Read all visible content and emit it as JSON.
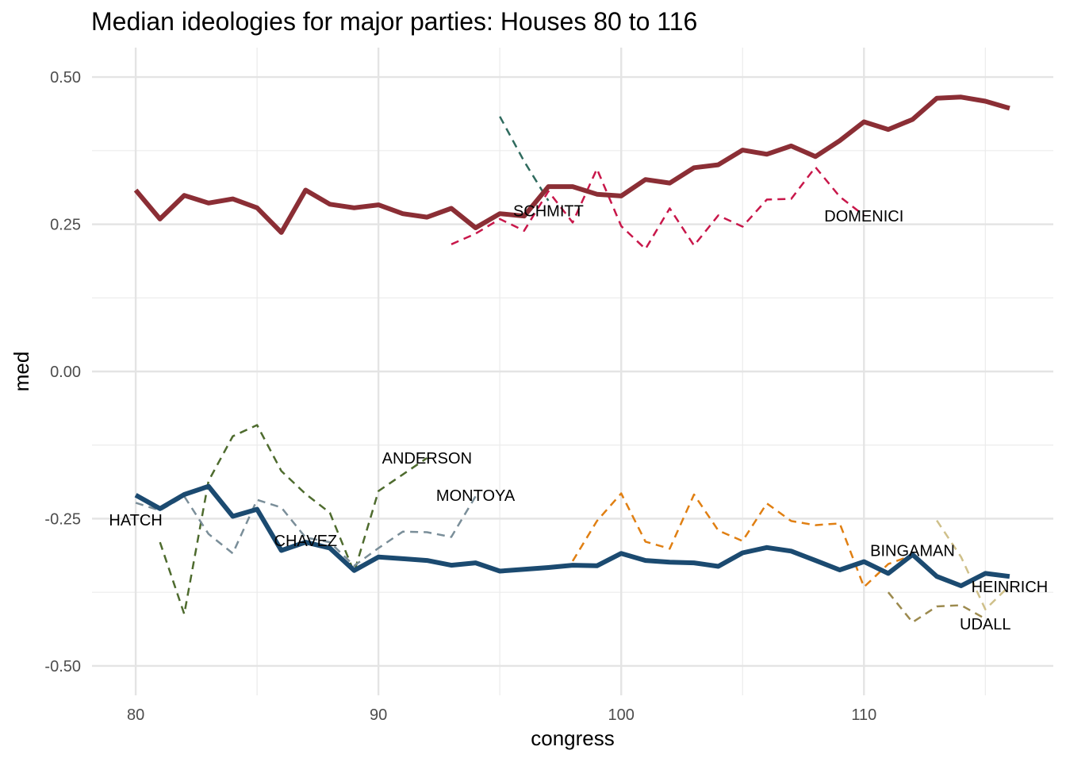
{
  "chart_data": {
    "type": "line",
    "title": "Median ideologies for major parties: Houses 80 to 116",
    "xlabel": "congress",
    "ylabel": "med",
    "xlim": [
      78.2,
      117.8
    ],
    "ylim": [
      -0.55,
      0.55
    ],
    "x_ticks": [
      80,
      90,
      100,
      110
    ],
    "y_ticks": [
      0.5,
      0.25,
      0.0,
      -0.25,
      -0.5
    ],
    "y_tick_labels": [
      "0.50",
      "0.25",
      "0.00",
      "-0.25",
      "-0.50"
    ],
    "grid": true,
    "legend": "none",
    "series": [
      {
        "color": "#8b2e35",
        "style": "solid",
        "width": 6,
        "x": [
          80,
          81,
          82,
          83,
          84,
          85,
          86,
          87,
          88,
          89,
          90,
          91,
          92,
          93,
          94,
          95,
          96,
          97,
          98,
          99,
          100,
          101,
          102,
          103,
          104,
          105,
          106,
          107,
          108,
          109,
          110,
          111,
          112,
          113,
          114,
          115,
          116
        ],
        "y": [
          0.308,
          0.259,
          0.299,
          0.286,
          0.293,
          0.278,
          0.236,
          0.308,
          0.284,
          0.278,
          0.283,
          0.268,
          0.262,
          0.277,
          0.244,
          0.268,
          0.264,
          0.314,
          0.314,
          0.301,
          0.298,
          0.326,
          0.32,
          0.346,
          0.351,
          0.376,
          0.369,
          0.383,
          0.365,
          0.392,
          0.424,
          0.411,
          0.428,
          0.464,
          0.466,
          0.459,
          0.447
        ]
      },
      {
        "color": "#1b4a70",
        "style": "solid",
        "width": 6,
        "x": [
          80,
          81,
          82,
          83,
          84,
          85,
          86,
          87,
          88,
          89,
          90,
          91,
          92,
          93,
          94,
          95,
          96,
          97,
          98,
          99,
          100,
          101,
          102,
          103,
          104,
          105,
          106,
          107,
          108,
          109,
          110,
          111,
          112,
          113,
          114,
          115,
          116
        ],
        "y": [
          -0.21,
          -0.233,
          -0.209,
          -0.195,
          -0.246,
          -0.234,
          -0.304,
          -0.29,
          -0.3,
          -0.338,
          -0.315,
          -0.318,
          -0.321,
          -0.329,
          -0.325,
          -0.339,
          -0.336,
          -0.333,
          -0.329,
          -0.33,
          -0.309,
          -0.321,
          -0.324,
          -0.325,
          -0.331,
          -0.308,
          -0.299,
          -0.305,
          -0.321,
          -0.337,
          -0.323,
          -0.343,
          -0.311,
          -0.348,
          -0.364,
          -0.343,
          -0.348
        ]
      },
      {
        "color": "#4e6b2e",
        "style": "dashed",
        "width": 2.5,
        "x": [
          81,
          82,
          83,
          84,
          85,
          86,
          87,
          88,
          89,
          90,
          91,
          92
        ],
        "y": [
          -0.29,
          -0.412,
          -0.186,
          -0.11,
          -0.091,
          -0.169,
          -0.208,
          -0.24,
          -0.341,
          -0.203,
          -0.175,
          -0.147
        ]
      },
      {
        "color": "#7a8e99",
        "style": "dashed",
        "width": 2.5,
        "x": [
          80,
          81,
          82,
          83,
          84,
          85,
          86,
          87,
          88,
          89,
          90,
          91,
          92,
          93,
          94
        ],
        "y": [
          -0.223,
          -0.236,
          -0.212,
          -0.276,
          -0.309,
          -0.218,
          -0.231,
          -0.282,
          -0.29,
          -0.33,
          -0.3,
          -0.272,
          -0.273,
          -0.281,
          -0.212
        ]
      },
      {
        "color": "#2f6b5e",
        "style": "dashed",
        "width": 2.5,
        "x": [
          95,
          96,
          97
        ],
        "y": [
          0.433,
          0.357,
          0.29
        ]
      },
      {
        "color": "#c8174a",
        "style": "dashed",
        "width": 2.5,
        "x": [
          93,
          94,
          95,
          96,
          97,
          98,
          99,
          100,
          101,
          102,
          103,
          104,
          105,
          106,
          107,
          108,
          109,
          110
        ],
        "y": [
          0.216,
          0.234,
          0.259,
          0.239,
          0.306,
          0.253,
          0.344,
          0.247,
          0.208,
          0.277,
          0.214,
          0.265,
          0.246,
          0.292,
          0.293,
          0.347,
          0.297,
          0.265
        ]
      },
      {
        "color": "#e07f12",
        "style": "dashed",
        "width": 2.5,
        "x": [
          98,
          99,
          100,
          101,
          102,
          103,
          104,
          105,
          106,
          107,
          108,
          109,
          110,
          111,
          112
        ],
        "y": [
          -0.322,
          -0.254,
          -0.207,
          -0.289,
          -0.301,
          -0.209,
          -0.27,
          -0.288,
          -0.224,
          -0.254,
          -0.261,
          -0.258,
          -0.366,
          -0.327,
          -0.312
        ]
      },
      {
        "color": "#9c8a4e",
        "style": "dashed",
        "width": 2.5,
        "x": [
          111,
          112,
          113,
          114,
          115
        ],
        "y": [
          -0.375,
          -0.426,
          -0.399,
          -0.397,
          -0.42
        ]
      },
      {
        "color": "#cfc08a",
        "style": "dashed",
        "width": 2.5,
        "x": [
          113,
          114,
          115,
          116
        ],
        "y": [
          -0.253,
          -0.315,
          -0.404,
          -0.364
        ]
      }
    ],
    "annotations": [
      {
        "text": "HATCH",
        "x": 80,
        "y": -0.252
      },
      {
        "text": "CHAVEZ",
        "x": 87,
        "y": -0.287
      },
      {
        "text": "ANDERSON",
        "x": 92,
        "y": -0.147
      },
      {
        "text": "MONTOYA",
        "x": 94,
        "y": -0.21
      },
      {
        "text": "SCHMITT",
        "x": 97,
        "y": 0.273
      },
      {
        "text": "DOMENICI",
        "x": 110,
        "y": 0.264
      },
      {
        "text": "BINGAMAN",
        "x": 112,
        "y": -0.304
      },
      {
        "text": "HEINRICH",
        "x": 116,
        "y": -0.365
      },
      {
        "text": "UDALL",
        "x": 115,
        "y": -0.429
      }
    ]
  }
}
